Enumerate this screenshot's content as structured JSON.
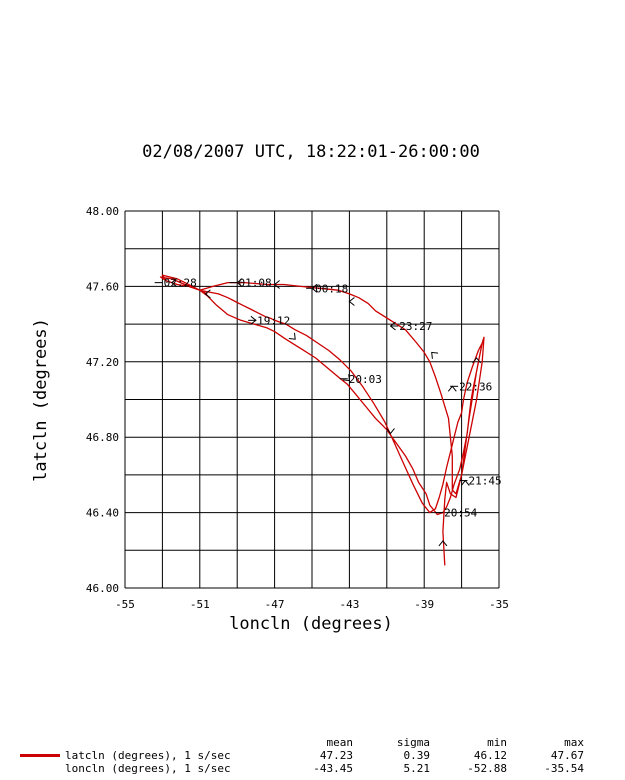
{
  "chart_data": {
    "type": "line",
    "title": "02/08/2007  UTC, 18:22:01-26:00:00",
    "xlabel": "loncln (degrees)",
    "ylabel": "latcln (degrees)",
    "xlim": [
      -55,
      -35
    ],
    "ylim": [
      46.0,
      48.0
    ],
    "x_ticks": [
      "-55",
      "-51",
      "-47",
      "-43",
      "-39",
      "-35"
    ],
    "y_ticks": [
      "46.00",
      "46.40",
      "46.80",
      "47.20",
      "47.60",
      "48.00"
    ],
    "grid": true,
    "line_color": "#cc0000",
    "series": [
      {
        "name": "latcln (degrees), 1 s/sec",
        "x": [
          -37.9,
          -38.0,
          -37.9,
          -37.8,
          -37.6,
          -37.3,
          -37.0,
          -36.6,
          -36.2,
          -35.9,
          -35.8,
          -35.9,
          -36.2,
          -36.6,
          -37.0,
          -37.3,
          -37.5,
          -37.5,
          -37.7,
          -38.1,
          -38.4,
          -38.7,
          -39.0,
          -39.4,
          -40.0,
          -40.8,
          -41.6,
          -42.0,
          -42.5,
          -43.0,
          -43.6,
          -44.6,
          -45.6,
          -46.5,
          -47.4,
          -48.6,
          -49.5,
          -50.3,
          -51.0,
          -51.8,
          -52.5,
          -53.1,
          -52.8,
          -52.2,
          -51.6,
          -51.0,
          -50.6,
          -50.1,
          -49.5,
          -48.8,
          -48.1,
          -47.4,
          -47.0,
          -46.4,
          -45.6,
          -44.8,
          -44.2,
          -43.6,
          -43.1,
          -42.6,
          -42.1,
          -41.6,
          -41.0,
          -40.5,
          -40.0,
          -39.6,
          -39.3,
          -38.9,
          -38.7,
          -38.3,
          -38.0,
          -37.8,
          -37.6,
          -37.4,
          -37.1,
          -36.9,
          -36.7,
          -36.6,
          -36.5,
          -36.4,
          -36.3,
          -36.2,
          -36.1,
          -36.0,
          -35.9,
          -36.1,
          -36.4,
          -36.7,
          -36.9,
          -37.0,
          -37.2,
          -37.4,
          -37.6,
          -37.8,
          -38.0,
          -38.2,
          -38.4,
          -38.7,
          -39.1,
          -39.6,
          -40.1,
          -40.6,
          -41.1,
          -41.7,
          -42.3,
          -42.9,
          -43.5,
          -44.1,
          -44.7,
          -45.3,
          -45.9,
          -46.4,
          -46.7,
          -47.0,
          -47.2,
          -47.5,
          -47.9,
          -48.3,
          -48.7,
          -49.1,
          -49.5,
          -50.0,
          -50.5,
          -51.0,
          -51.6,
          -52.2,
          -52.8,
          -53.0,
          -52.6,
          -52.2,
          -51.8,
          -51.4,
          -51.0,
          -50.8,
          -50.6
        ],
        "y": [
          46.12,
          46.3,
          46.47,
          46.56,
          46.5,
          46.48,
          46.6,
          46.9,
          47.15,
          47.3,
          47.33,
          47.2,
          47.0,
          46.8,
          46.6,
          46.5,
          46.52,
          46.7,
          46.9,
          47.03,
          47.12,
          47.2,
          47.25,
          47.3,
          47.37,
          47.42,
          47.47,
          47.51,
          47.54,
          47.56,
          47.58,
          47.59,
          47.6,
          47.61,
          47.61,
          47.62,
          47.62,
          47.6,
          47.58,
          47.61,
          47.64,
          47.65,
          47.63,
          47.61,
          47.6,
          47.58,
          47.55,
          47.5,
          47.45,
          47.42,
          47.4,
          47.38,
          47.36,
          47.32,
          47.27,
          47.22,
          47.17,
          47.12,
          47.08,
          47.02,
          46.96,
          46.9,
          46.84,
          46.77,
          46.7,
          46.63,
          46.56,
          46.5,
          46.44,
          46.39,
          46.4,
          46.43,
          46.48,
          46.55,
          46.63,
          46.72,
          46.82,
          46.91,
          46.99,
          47.05,
          47.1,
          47.15,
          47.2,
          47.25,
          47.3,
          47.26,
          47.18,
          47.09,
          47.0,
          46.93,
          46.88,
          46.8,
          46.72,
          46.64,
          46.55,
          46.48,
          46.42,
          46.4,
          46.45,
          46.55,
          46.66,
          46.77,
          46.88,
          46.98,
          47.07,
          47.15,
          47.21,
          47.26,
          47.3,
          47.34,
          47.37,
          47.4,
          47.41,
          47.42,
          47.43,
          47.44,
          47.46,
          47.48,
          47.5,
          47.52,
          47.54,
          47.56,
          47.57,
          47.58,
          47.6,
          47.61,
          47.63,
          47.66,
          47.65,
          47.64,
          47.62,
          47.6,
          47.58,
          47.57,
          47.56
        ]
      }
    ],
    "annotations": [
      {
        "text": "02:28",
        "x": -53.2,
        "y": 47.62
      },
      {
        "text": "01:08",
        "x": -49.2,
        "y": 47.62
      },
      {
        "text": "00:18",
        "x": -45.1,
        "y": 47.59
      },
      {
        "text": "23:27",
        "x": -40.6,
        "y": 47.39
      },
      {
        "text": "19:12",
        "x": -48.2,
        "y": 47.42
      },
      {
        "text": "20:03",
        "x": -43.3,
        "y": 47.11
      },
      {
        "text": "22:36",
        "x": -37.4,
        "y": 47.07
      },
      {
        "text": "21:45",
        "x": -36.9,
        "y": 46.57
      },
      {
        "text": "20:54",
        "x": -38.2,
        "y": 46.4
      }
    ],
    "arrows": [
      {
        "x": -48.0,
        "y": 47.42,
        "dir": "right"
      },
      {
        "x": -45.9,
        "y": 47.32,
        "dir": "down-right"
      },
      {
        "x": -43.0,
        "y": 47.1,
        "dir": "down-right"
      },
      {
        "x": -40.8,
        "y": 46.82,
        "dir": "down"
      },
      {
        "x": -38.0,
        "y": 46.25,
        "dir": "up"
      },
      {
        "x": -36.8,
        "y": 46.57,
        "dir": "up"
      },
      {
        "x": -36.2,
        "y": 47.22,
        "dir": "up"
      },
      {
        "x": -37.5,
        "y": 47.07,
        "dir": "up"
      },
      {
        "x": -38.6,
        "y": 47.25,
        "dir": "up-left"
      },
      {
        "x": -40.8,
        "y": 47.39,
        "dir": "left"
      },
      {
        "x": -43.0,
        "y": 47.52,
        "dir": "left"
      },
      {
        "x": -45.0,
        "y": 47.59,
        "dir": "left"
      },
      {
        "x": -47.0,
        "y": 47.61,
        "dir": "left"
      },
      {
        "x": -49.0,
        "y": 47.62,
        "dir": "left"
      },
      {
        "x": -50.7,
        "y": 47.56,
        "dir": "left"
      },
      {
        "x": -52.5,
        "y": 47.62,
        "dir": "left"
      }
    ]
  },
  "stats": {
    "headers": [
      "mean",
      "sigma",
      "min",
      "max"
    ],
    "rows": [
      {
        "label": "latcln (degrees), 1 s/sec",
        "mean": "47.23",
        "sigma": "0.39",
        "min": "46.12",
        "max": "47.67"
      },
      {
        "label": "loncln (degrees), 1 s/sec",
        "mean": "-43.45",
        "sigma": "5.21",
        "min": "-52.88",
        "max": "-35.54"
      }
    ]
  }
}
